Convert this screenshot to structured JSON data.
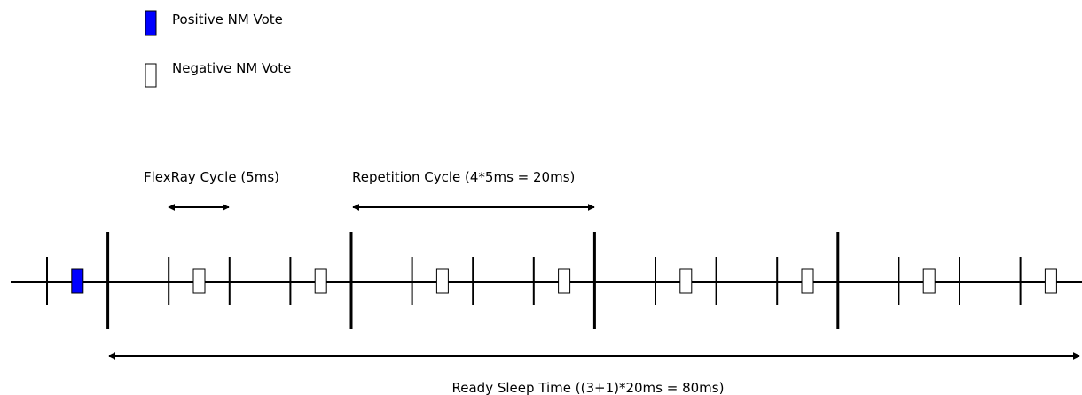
{
  "legend": {
    "positive_label": "Positive NM Vote",
    "negative_label": "Negative NM Vote",
    "positive_color": "#0000ff",
    "negative_color": "#ffffff"
  },
  "labels": {
    "flexray_cycle": "FlexRay Cycle (5ms)",
    "repetition_cycle": "Repetition Cycle (4*5ms = 20ms)",
    "ready_sleep_time": "Ready Sleep Time ((3+1)*20ms = 80ms)"
  },
  "timeline": {
    "cycles": 17,
    "cycles_per_repetition": 4,
    "votes": [
      "positive",
      "negative",
      "negative",
      "negative",
      "negative",
      "negative",
      "negative",
      "negative",
      "negative"
    ]
  },
  "colors": {
    "stroke": "#000000",
    "accent": "#0000ff"
  }
}
